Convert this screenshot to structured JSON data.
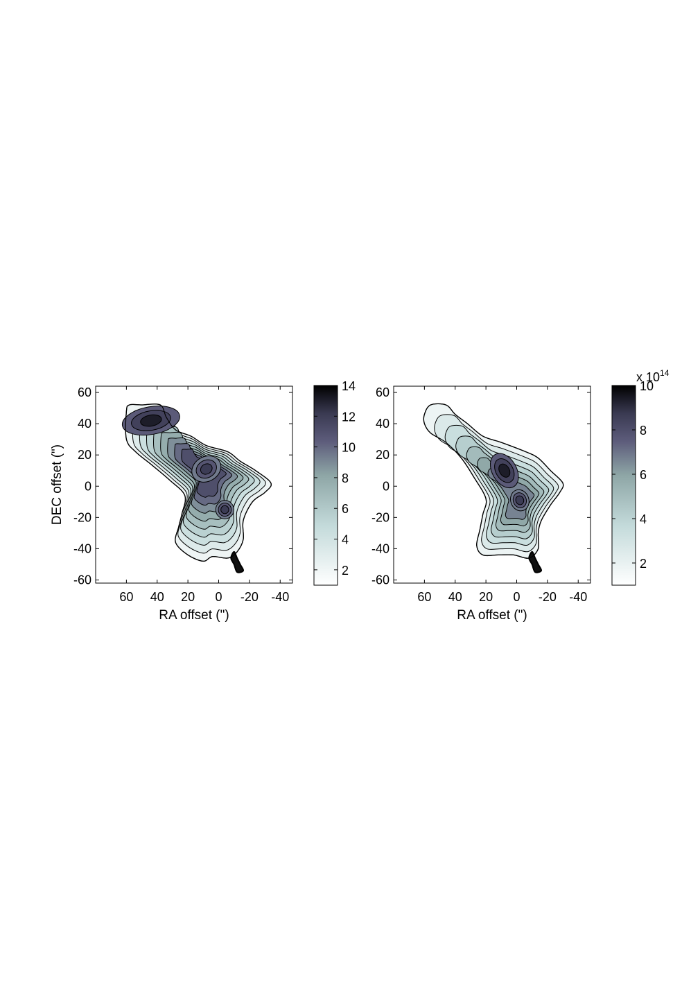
{
  "chart_data": [
    {
      "type": "contour",
      "xlabel": "RA offset (\")",
      "ylabel": "DEC offset (\")",
      "xlim": [
        80,
        -48
      ],
      "ylim": [
        -62,
        64
      ],
      "x_ticks": [
        "60",
        "40",
        "20",
        "0",
        "-20",
        "-40"
      ],
      "y_ticks": [
        "-60",
        "-40",
        "-20",
        "0",
        "20",
        "40",
        "60"
      ],
      "colorbar": {
        "range": [
          1,
          14
        ],
        "ticks": [
          "2",
          "4",
          "6",
          "8",
          "10",
          "12",
          "14"
        ],
        "colormap": "bone (white to black)"
      },
      "features": [
        {
          "type": "peak",
          "x": 55,
          "y": 46,
          "value": 14
        },
        {
          "type": "peak",
          "x": 8,
          "y": 11,
          "value": 10
        },
        {
          "type": "peak",
          "x": -4,
          "y": -15,
          "value": 5
        },
        {
          "type": "spur",
          "x": -12,
          "y": -50,
          "value": 14
        }
      ]
    },
    {
      "type": "contour",
      "xlabel": "RA offset (\")",
      "ylabel": "",
      "xlim": [
        80,
        -48
      ],
      "ylim": [
        -62,
        64
      ],
      "x_ticks": [
        "60",
        "40",
        "20",
        "0",
        "-20",
        "-40"
      ],
      "y_ticks": [
        "-60",
        "-40",
        "-20",
        "0",
        "20",
        "40",
        "60"
      ],
      "colorbar": {
        "range": [
          1,
          10
        ],
        "ticks": [
          "2",
          "4",
          "6",
          "8",
          "10"
        ],
        "multiplier_base": "x 10",
        "multiplier_exponent": "14",
        "colormap": "bone (white to black)"
      },
      "features": [
        {
          "type": "peak",
          "x": 7,
          "y": 10,
          "value": 9
        },
        {
          "type": "peak",
          "x": -2,
          "y": -9,
          "value": 8
        },
        {
          "type": "peak",
          "x": 12,
          "y": 18,
          "value": 8
        },
        {
          "type": "spur",
          "x": -12,
          "y": -49,
          "value": 10
        }
      ]
    }
  ]
}
